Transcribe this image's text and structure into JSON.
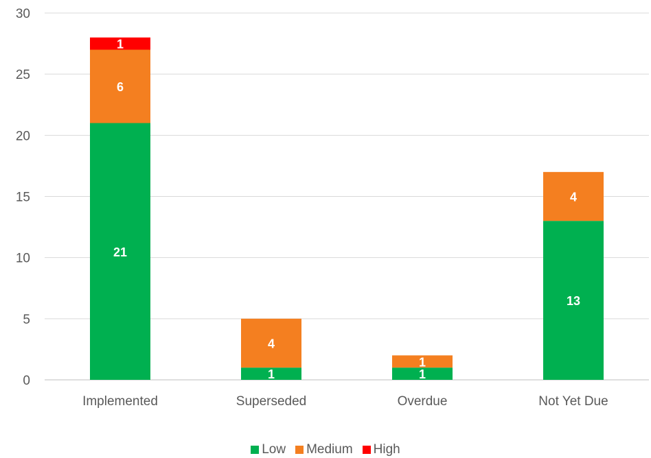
{
  "chart_data": {
    "type": "bar",
    "stacked": true,
    "categories": [
      "Implemented",
      "Superseded",
      "Overdue",
      "Not Yet Due"
    ],
    "series": [
      {
        "name": "Low",
        "values": [
          21,
          1,
          1,
          13
        ],
        "color": "#00B050"
      },
      {
        "name": "Medium",
        "values": [
          6,
          4,
          1,
          4
        ],
        "color": "#F47F20"
      },
      {
        "name": "High",
        "values": [
          1,
          0,
          0,
          0
        ],
        "color": "#FF0000"
      }
    ],
    "ylim": [
      0,
      30
    ],
    "yticks": [
      0,
      5,
      10,
      15,
      20,
      25,
      30
    ],
    "grid": true,
    "legend_position": "bottom",
    "title": "",
    "xlabel": "",
    "ylabel": ""
  }
}
